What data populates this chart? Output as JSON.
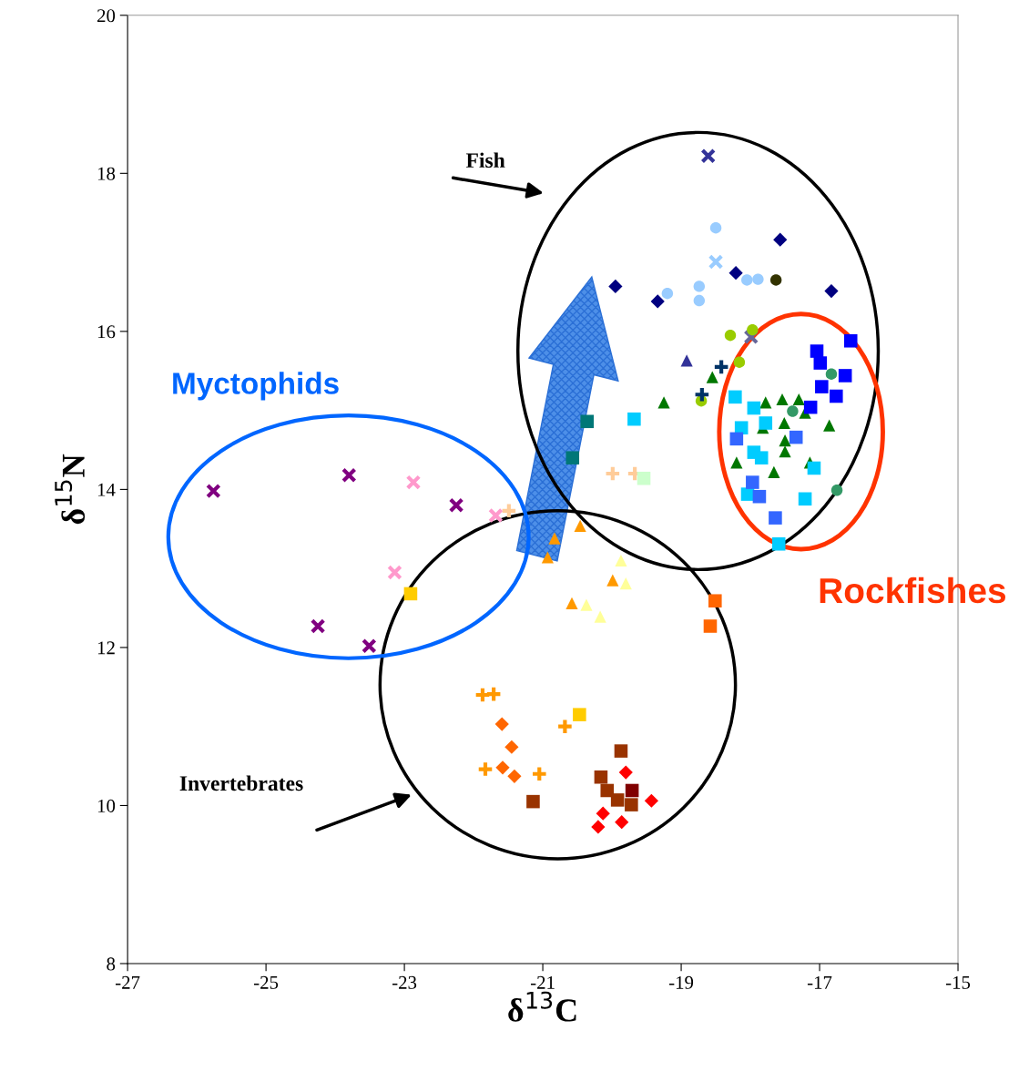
{
  "chart_data": {
    "type": "scatter",
    "xlabel": "δ$^{13}$C",
    "ylabel": "δ$^{15}$N",
    "xlim": [
      -27,
      -15
    ],
    "ylim": [
      8,
      20
    ],
    "xticks": [
      -27,
      -25,
      -23,
      -21,
      -19,
      -17,
      -15
    ],
    "yticks": [
      8,
      10,
      12,
      14,
      16,
      18,
      20
    ],
    "grid": false,
    "legend": false,
    "annotations": [
      "Fish",
      "Invertebrates",
      "Myctophids",
      "Rockfishes"
    ],
    "series": [
      {
        "color": "#000080",
        "marker": "diamond",
        "x": [
          -19.95,
          -19.34,
          -18.21,
          -17.57,
          -16.83
        ],
        "values": [
          16.57,
          16.38,
          16.74,
          17.16,
          16.51
        ]
      },
      {
        "color": "#333300",
        "marker": "circle",
        "x": [
          -17.63
        ],
        "values": [
          16.65
        ]
      },
      {
        "color": "#99ccff",
        "marker": "circle",
        "x": [
          -18.5,
          -19.2,
          -18.74,
          -18.74,
          -17.89,
          -18.05
        ],
        "values": [
          17.31,
          16.48,
          16.57,
          16.39,
          16.66,
          16.65
        ]
      },
      {
        "color": "#99ccff",
        "marker": "cross",
        "x": [
          -18.5
        ],
        "values": [
          16.88
        ]
      },
      {
        "color": "#333399",
        "marker": "cross",
        "x": [
          -18.61
        ],
        "values": [
          18.22
        ]
      },
      {
        "color": "#666699",
        "marker": "cross",
        "x": [
          -17.99
        ],
        "values": [
          15.93
        ]
      },
      {
        "color": "#99cc00",
        "marker": "circle",
        "x": [
          -18.29,
          -17.97,
          -18.16,
          -18.71
        ],
        "values": [
          15.95,
          16.02,
          15.61,
          15.12
        ]
      },
      {
        "color": "#333399",
        "marker": "triangle",
        "x": [
          -18.92
        ],
        "values": [
          15.63
        ]
      },
      {
        "color": "#003366",
        "marker": "plus",
        "x": [
          -18.42,
          -18.7
        ],
        "values": [
          15.55,
          15.2
        ]
      },
      {
        "color": "#007700",
        "marker": "triangle",
        "x": [
          -19.25,
          -18.55,
          -17.78,
          -17.54,
          -17.3,
          -17.21,
          -17.82,
          -17.51,
          -17.5,
          -17.5,
          -16.86,
          -17.14,
          -17.66,
          -18.2
        ],
        "values": [
          15.1,
          15.42,
          15.1,
          15.14,
          15.14,
          14.97,
          14.78,
          14.84,
          14.62,
          14.48,
          14.81,
          14.34,
          14.22,
          14.34
        ]
      },
      {
        "color": "#00ccff",
        "marker": "square",
        "x": [
          -19.68,
          -18.22,
          -17.95,
          -18.13,
          -17.78,
          -17.95,
          -17.84,
          -18.04,
          -17.21,
          -17.08,
          -17.59
        ],
        "values": [
          14.89,
          15.17,
          15.03,
          14.78,
          14.84,
          14.47,
          14.4,
          13.94,
          13.88,
          14.27,
          13.31
        ]
      },
      {
        "color": "#0000ff",
        "marker": "square",
        "x": [
          -16.55,
          -17.04,
          -16.99,
          -16.63,
          -16.97,
          -16.76,
          -17.13
        ],
        "values": [
          15.88,
          15.75,
          15.6,
          15.44,
          15.3,
          15.18,
          15.04
        ]
      },
      {
        "color": "#3366ff",
        "marker": "square",
        "x": [
          -18.2,
          -17.97,
          -17.87,
          -17.64,
          -17.34
        ],
        "values": [
          14.64,
          14.09,
          13.91,
          13.64,
          14.66
        ]
      },
      {
        "color": "#339966",
        "marker": "circle",
        "x": [
          -16.83,
          -17.39,
          -16.75
        ],
        "values": [
          15.46,
          14.99,
          13.99
        ]
      },
      {
        "color": "#007777",
        "marker": "square",
        "x": [
          -20.36,
          -20.57
        ],
        "values": [
          14.86,
          14.4
        ]
      },
      {
        "color": "#ffcc99",
        "marker": "plus",
        "x": [
          -19.99,
          -19.67,
          -21.49
        ],
        "values": [
          14.2,
          14.2,
          13.73
        ]
      },
      {
        "color": "#ccffcc",
        "marker": "square",
        "x": [
          -19.54
        ],
        "values": [
          14.14
        ]
      },
      {
        "color": "#800080",
        "marker": "cross",
        "x": [
          -25.76,
          -23.8,
          -22.25,
          -24.25,
          -23.51
        ],
        "values": [
          13.98,
          14.18,
          13.8,
          12.27,
          12.02
        ]
      },
      {
        "color": "#ff99cc",
        "marker": "cross",
        "x": [
          -22.87,
          -23.14,
          -21.68
        ],
        "values": [
          14.09,
          12.95,
          13.67
        ]
      },
      {
        "color": "#ffcc00",
        "marker": "square",
        "x": [
          -22.91,
          -20.47
        ],
        "values": [
          12.68,
          11.15
        ]
      },
      {
        "color": "#ff9900",
        "marker": "triangle",
        "x": [
          -20.83,
          -20.46,
          -20.93,
          -19.99,
          -20.58
        ],
        "values": [
          13.38,
          13.54,
          13.14,
          12.85,
          12.56
        ]
      },
      {
        "color": "#ffff99",
        "marker": "triangle",
        "x": [
          -19.87,
          -19.8,
          -20.37,
          -20.17
        ],
        "values": [
          13.1,
          12.81,
          12.54,
          12.39
        ]
      },
      {
        "color": "#ff6600",
        "marker": "square",
        "x": [
          -18.51,
          -18.58
        ],
        "values": [
          12.59,
          12.27
        ]
      },
      {
        "color": "#ff9900",
        "marker": "plus",
        "x": [
          -21.87,
          -21.71,
          -20.68,
          -21.83,
          -21.05
        ],
        "values": [
          11.4,
          11.41,
          11.0,
          10.46,
          10.4
        ]
      },
      {
        "color": "#ff6600",
        "marker": "diamond",
        "x": [
          -21.59,
          -21.45,
          -21.58,
          -21.41
        ],
        "values": [
          11.03,
          10.74,
          10.48,
          10.37
        ]
      },
      {
        "color": "#993300",
        "marker": "square",
        "x": [
          -21.14,
          -19.87,
          -20.16,
          -20.07,
          -19.92,
          -19.72
        ],
        "values": [
          10.05,
          10.69,
          10.36,
          10.19,
          10.07,
          10.01
        ]
      },
      {
        "color": "#800000",
        "marker": "square",
        "x": [
          -19.71
        ],
        "values": [
          10.19
        ]
      },
      {
        "color": "#ff0000",
        "marker": "diamond",
        "x": [
          -19.8,
          -19.43,
          -20.13,
          -20.2,
          -19.86
        ],
        "values": [
          10.42,
          10.06,
          9.9,
          9.73,
          9.79
        ]
      }
    ]
  }
}
